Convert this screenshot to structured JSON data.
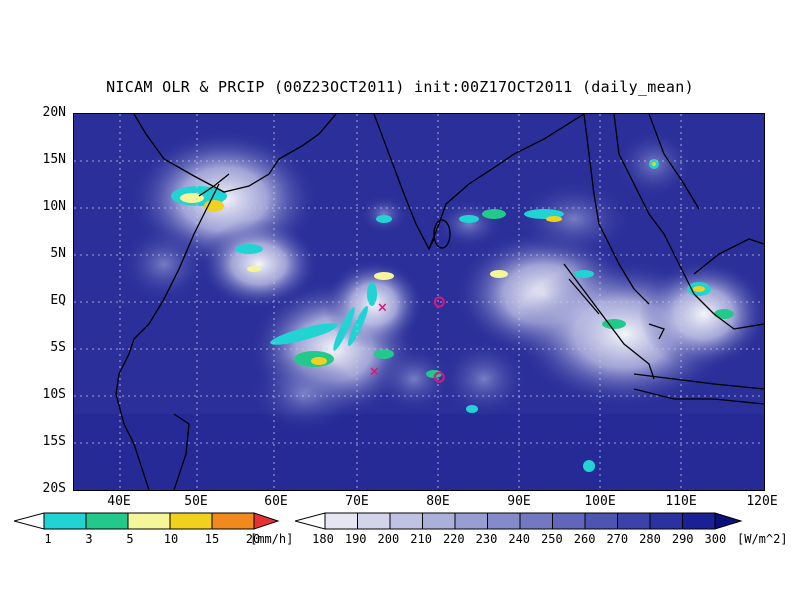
{
  "title": "NICAM OLR & PRCIP (00Z23OCT2011) init:00Z17OCT2011 (daily_mean)",
  "y_axis": {
    "ticks": [
      "20N",
      "15N",
      "10N",
      "5N",
      "EQ",
      "5S",
      "10S",
      "15S",
      "20S"
    ]
  },
  "x_axis": {
    "ticks": [
      "40E",
      "50E",
      "60E",
      "70E",
      "80E",
      "90E",
      "100E",
      "110E",
      "120E"
    ]
  },
  "precip_colorbar": {
    "labels": [
      "1",
      "3",
      "5",
      "10",
      "15",
      "20"
    ],
    "unit": "[mm/h]",
    "colors": [
      "#22d3d3",
      "#22c98a",
      "#f5f59a",
      "#f0d21e",
      "#f08a1e",
      "#e83232"
    ]
  },
  "olr_colorbar": {
    "labels": [
      "180",
      "190",
      "200",
      "210",
      "220",
      "230",
      "240",
      "250",
      "260",
      "270",
      "280",
      "290",
      "300"
    ],
    "unit": "[W/m^2]",
    "colors": [
      "#e6e6f2",
      "#d2d4ea",
      "#bfc2e2",
      "#abb0da",
      "#989ed2",
      "#858bca",
      "#7279c2",
      "#6067ba",
      "#4d55b2",
      "#3b43a9",
      "#2a32a0",
      "#1a2096",
      "#12188a"
    ]
  },
  "map": {
    "background_color": "#2a2f9a",
    "coast_color": "#000000",
    "markers": [
      {
        "symbol": "x",
        "lon": 73,
        "lat": -0.5
      },
      {
        "symbol": "x",
        "lon": 72,
        "lat": -7.3
      },
      {
        "symbol": "o",
        "lon": 80,
        "lat": 0
      },
      {
        "symbol": "o",
        "lon": 80,
        "lat": -8
      }
    ]
  }
}
